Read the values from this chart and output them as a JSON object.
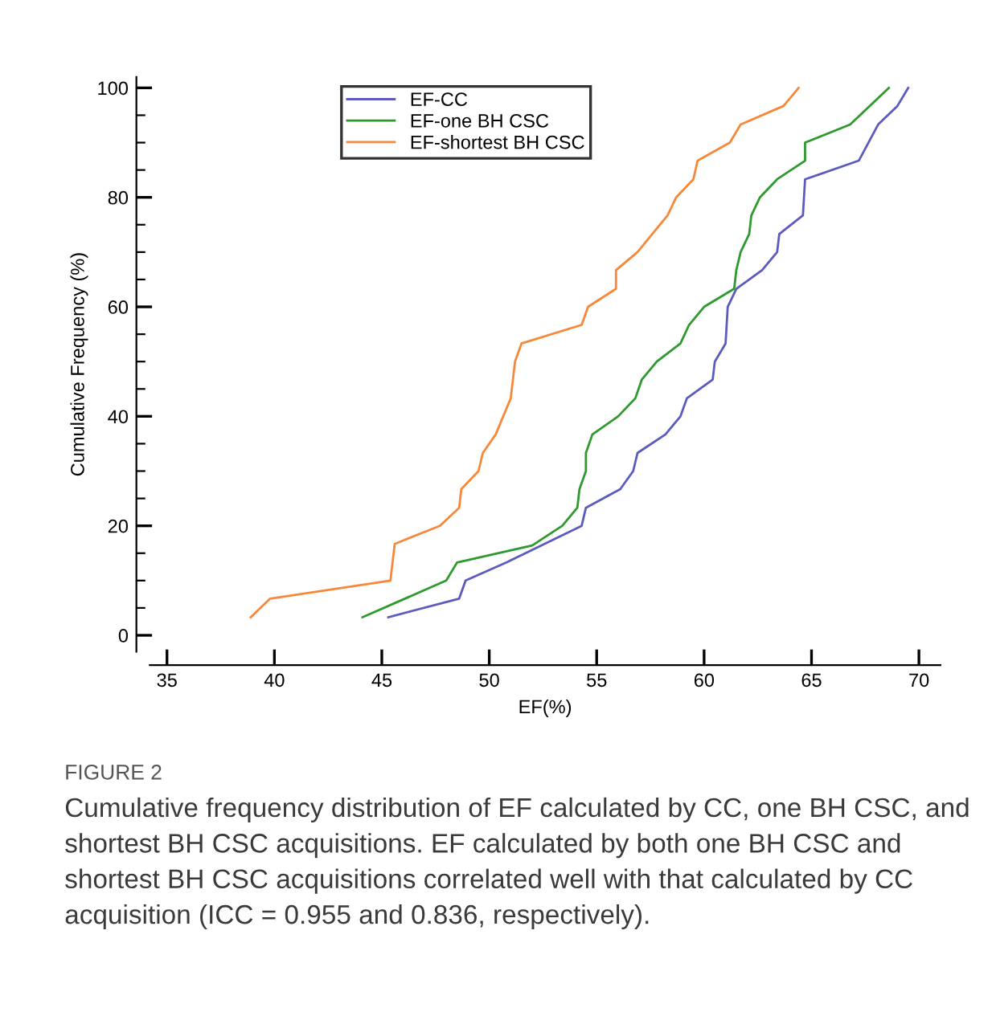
{
  "chart_data": {
    "type": "line",
    "xlabel": "EF(%)",
    "ylabel": "Cumulative Frequency (%)",
    "series": [
      {
        "name": "EF-CC",
        "color": "#5b5bbf",
        "x": [
          45.3,
          48.6,
          48.9,
          50.8,
          54.3,
          54.5,
          56.1,
          56.7,
          56.9,
          58.2,
          58.9,
          59.2,
          60.4,
          60.5,
          61.0,
          61.1,
          61.5,
          62.7,
          63.4,
          63.5,
          64.6,
          64.7,
          67.2,
          68.1,
          69.0,
          69.5
        ],
        "values": [
          3.3,
          6.7,
          10,
          13.3,
          20,
          23.3,
          26.7,
          30,
          33.3,
          36.7,
          40,
          43.3,
          46.7,
          50,
          53.3,
          60,
          63.3,
          66.7,
          70,
          73.3,
          76.7,
          83.3,
          86.7,
          93.3,
          96.7,
          100
        ]
      },
      {
        "name": "EF-one BH CSC",
        "color": "#2e9a2e",
        "x": [
          44.1,
          48.0,
          48.5,
          52.0,
          53.4,
          54.1,
          54.2,
          54.5,
          54.5,
          54.8,
          56.0,
          56.8,
          57.1,
          57.8,
          58.9,
          59.3,
          60.0,
          61.4,
          61.5,
          61.7,
          62.1,
          62.2,
          62.6,
          63.4,
          64.7,
          64.7,
          66.8,
          68.6
        ],
        "values": [
          3.3,
          10,
          13.3,
          16.4,
          20,
          23.3,
          26.7,
          30,
          33.3,
          36.7,
          40,
          43.3,
          46.7,
          50,
          53.3,
          56.7,
          60,
          63.3,
          66.7,
          70,
          73.3,
          76.7,
          80,
          83.3,
          86.7,
          90,
          93.3,
          100
        ]
      },
      {
        "name": "EF-shortest BH CSC",
        "color": "#f7883a",
        "x": [
          38.9,
          39.8,
          45.4,
          45.6,
          47.7,
          48.6,
          48.7,
          49.5,
          49.7,
          50.3,
          51.0,
          51.2,
          51.5,
          54.3,
          54.6,
          55.9,
          55.9,
          56.9,
          58.3,
          58.7,
          59.5,
          59.7,
          61.2,
          61.7,
          63.7,
          64.4
        ],
        "values": [
          3.3,
          6.7,
          10,
          16.7,
          20,
          23.3,
          26.7,
          30,
          33.3,
          36.7,
          43.3,
          50,
          53.3,
          56.7,
          60,
          63.3,
          66.7,
          70,
          76.7,
          80,
          83.3,
          86.7,
          90,
          93.3,
          96.7,
          100
        ]
      }
    ],
    "xlim": [
      34.2,
      71
    ],
    "ylim": [
      -3,
      102
    ],
    "xticks": [
      35,
      40,
      45,
      50,
      55,
      60,
      65,
      70
    ],
    "yticks": [
      0,
      {
        "value": 5,
        "label": null
      },
      {
        "value": 10,
        "label": null
      },
      {
        "value": 15,
        "label": null
      },
      20,
      {
        "value": 25,
        "label": null
      },
      {
        "value": 30,
        "label": null
      },
      {
        "value": 35,
        "label": null
      },
      40,
      {
        "value": 45,
        "label": null
      },
      {
        "value": 50,
        "label": null
      },
      {
        "value": 55,
        "label": null
      },
      60,
      {
        "value": 65,
        "label": null
      },
      {
        "value": 70,
        "label": null
      },
      {
        "value": 75,
        "label": null
      },
      80,
      {
        "value": 85,
        "label": null
      },
      {
        "value": 90,
        "label": null
      },
      {
        "value": 95,
        "label": null
      },
      100
    ],
    "legend": "top",
    "grid": false,
    "annotations": [
      "FIGURE 2",
      "Cumulative frequency distribution of EF calculated by CC, one BH CSC, and shortest BH CSC acquisitions. EF calculated by both one BH CSC and shortest BH CSC acquisitions correlated well with that calculated by CC acquisition (ICC = 0.955 and 0.836, respectively)."
    ]
  }
}
